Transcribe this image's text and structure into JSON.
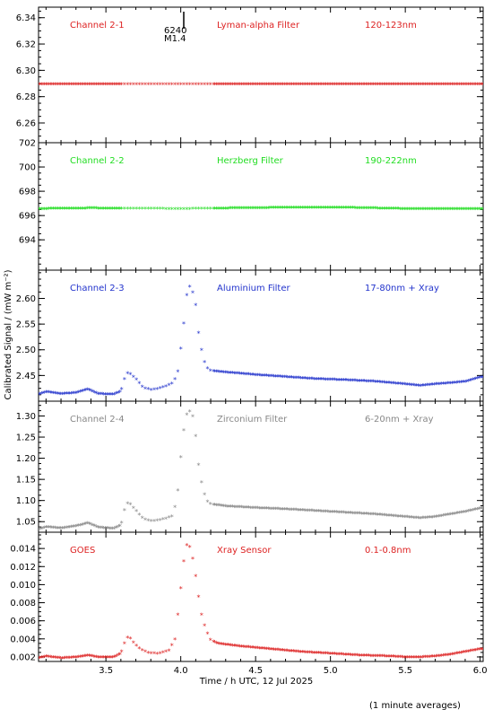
{
  "chart_data": {
    "type": "scatter",
    "x_axis": {
      "label": "Time / h UTC, 12 Jul 2025",
      "range": [
        3.05,
        6.02
      ],
      "ticks": [
        3.5,
        4.0,
        4.5,
        5.0,
        5.5,
        6.0
      ],
      "tick_labels": [
        "3.5",
        "4.0",
        "4.5",
        "5.0",
        "5.5",
        "6.0"
      ]
    },
    "y_axis_label": "Calibrated Signal / (mW m⁻²)",
    "footnote": "(1 minute averages)",
    "marker_annotation": {
      "x": 4.02,
      "line1": "6240",
      "line2": "M1.4"
    },
    "panels": [
      {
        "channel": "Channel 2-1",
        "filter": "Lyman-alpha Filter",
        "band": "120-123nm",
        "color": "#dd2222",
        "ylim": [
          6.245,
          6.348
        ],
        "yticks": [
          6.26,
          6.28,
          6.3,
          6.32,
          6.34
        ],
        "ytick_labels": [
          "6.26",
          "6.28",
          "6.30",
          "6.32",
          "6.34"
        ],
        "style": "line",
        "points": [
          [
            3.05,
            6.289
          ],
          [
            6.02,
            6.289
          ]
        ]
      },
      {
        "channel": "Channel 2-2",
        "filter": "Herzberg Filter",
        "band": "190-222nm",
        "color": "#22dd22",
        "ylim": [
          691.5,
          702.0
        ],
        "yticks": [
          694,
          696,
          698,
          700,
          702
        ],
        "ytick_labels": [
          "694",
          "696",
          "698",
          "700",
          "702"
        ],
        "style": "line",
        "points": [
          [
            3.05,
            696.5
          ],
          [
            3.4,
            696.55
          ],
          [
            4.0,
            696.5
          ],
          [
            4.7,
            696.6
          ],
          [
            5.1,
            696.6
          ],
          [
            5.5,
            696.5
          ],
          [
            6.02,
            696.5
          ]
        ]
      },
      {
        "channel": "Channel 2-3",
        "filter": "Aluminium Filter",
        "band": "17-80nm + Xray",
        "color": "#2233cc",
        "ylim": [
          2.4,
          2.655
        ],
        "yticks": [
          2.45,
          2.5,
          2.55,
          2.6
        ],
        "ytick_labels": [
          "2.45",
          "2.50",
          "2.55",
          "2.60"
        ],
        "style": "mixed",
        "points": [
          [
            3.05,
            2.412
          ],
          [
            3.1,
            2.417
          ],
          [
            3.2,
            2.413
          ],
          [
            3.3,
            2.415
          ],
          [
            3.38,
            2.422
          ],
          [
            3.45,
            2.413
          ],
          [
            3.55,
            2.412
          ],
          [
            3.6,
            2.418
          ],
          [
            3.63,
            2.448
          ],
          [
            3.65,
            2.455
          ],
          [
            3.7,
            2.442
          ],
          [
            3.75,
            2.425
          ],
          [
            3.8,
            2.421
          ],
          [
            3.85,
            2.423
          ],
          [
            3.9,
            2.428
          ],
          [
            3.95,
            2.434
          ],
          [
            3.98,
            2.455
          ],
          [
            4.0,
            2.5
          ],
          [
            4.02,
            2.55
          ],
          [
            4.04,
            2.605
          ],
          [
            4.06,
            2.622
          ],
          [
            4.08,
            2.61
          ],
          [
            4.1,
            2.585
          ],
          [
            4.12,
            2.53
          ],
          [
            4.15,
            2.48
          ],
          [
            4.18,
            2.462
          ],
          [
            4.2,
            2.458
          ],
          [
            4.3,
            2.455
          ],
          [
            4.5,
            2.45
          ],
          [
            4.7,
            2.446
          ],
          [
            4.9,
            2.442
          ],
          [
            5.1,
            2.44
          ],
          [
            5.3,
            2.437
          ],
          [
            5.5,
            2.432
          ],
          [
            5.6,
            2.429
          ],
          [
            5.7,
            2.432
          ],
          [
            5.8,
            2.434
          ],
          [
            5.9,
            2.437
          ],
          [
            6.0,
            2.445
          ]
        ]
      },
      {
        "channel": "Channel 2-4",
        "filter": "Zirconium Filter",
        "band": "6-20nm + Xray",
        "color": "#888888",
        "ylim": [
          1.025,
          1.335
        ],
        "yticks": [
          1.05,
          1.1,
          1.15,
          1.2,
          1.25,
          1.3
        ],
        "ytick_labels": [
          "1.05",
          "1.10",
          "1.15",
          "1.20",
          "1.25",
          "1.30"
        ],
        "style": "mixed",
        "points": [
          [
            3.05,
            1.03
          ],
          [
            3.1,
            1.036
          ],
          [
            3.2,
            1.033
          ],
          [
            3.3,
            1.038
          ],
          [
            3.38,
            1.045
          ],
          [
            3.45,
            1.035
          ],
          [
            3.55,
            1.032
          ],
          [
            3.6,
            1.04
          ],
          [
            3.63,
            1.085
          ],
          [
            3.65,
            1.095
          ],
          [
            3.7,
            1.075
          ],
          [
            3.75,
            1.055
          ],
          [
            3.8,
            1.05
          ],
          [
            3.85,
            1.052
          ],
          [
            3.9,
            1.056
          ],
          [
            3.95,
            1.062
          ],
          [
            3.98,
            1.12
          ],
          [
            4.0,
            1.2
          ],
          [
            4.02,
            1.265
          ],
          [
            4.04,
            1.302
          ],
          [
            4.06,
            1.31
          ],
          [
            4.08,
            1.298
          ],
          [
            4.1,
            1.25
          ],
          [
            4.12,
            1.18
          ],
          [
            4.15,
            1.12
          ],
          [
            4.18,
            1.095
          ],
          [
            4.2,
            1.09
          ],
          [
            4.3,
            1.085
          ],
          [
            4.5,
            1.081
          ],
          [
            4.7,
            1.078
          ],
          [
            4.9,
            1.074
          ],
          [
            5.1,
            1.07
          ],
          [
            5.3,
            1.066
          ],
          [
            5.5,
            1.06
          ],
          [
            5.6,
            1.057
          ],
          [
            5.7,
            1.06
          ],
          [
            5.8,
            1.066
          ],
          [
            5.9,
            1.072
          ],
          [
            6.0,
            1.08
          ]
        ]
      },
      {
        "channel": "GOES",
        "filter": "Xray Sensor",
        "band": "0.1-0.8nm",
        "color": "#dd2222",
        "ylim": [
          0.0015,
          0.0158
        ],
        "yticks": [
          0.002,
          0.004,
          0.006,
          0.008,
          0.01,
          0.012,
          0.014
        ],
        "ytick_labels": [
          "0.002",
          "0.004",
          "0.006",
          "0.008",
          "0.010",
          "0.012",
          "0.014"
        ],
        "style": "mixed",
        "points": [
          [
            3.05,
            0.0018
          ],
          [
            3.1,
            0.002
          ],
          [
            3.2,
            0.0018
          ],
          [
            3.3,
            0.0019
          ],
          [
            3.38,
            0.0021
          ],
          [
            3.45,
            0.0019
          ],
          [
            3.55,
            0.0019
          ],
          [
            3.6,
            0.0023
          ],
          [
            3.62,
            0.0033
          ],
          [
            3.65,
            0.0043
          ],
          [
            3.68,
            0.0036
          ],
          [
            3.72,
            0.0029
          ],
          [
            3.78,
            0.0024
          ],
          [
            3.85,
            0.0023
          ],
          [
            3.92,
            0.0026
          ],
          [
            3.96,
            0.0038
          ],
          [
            3.98,
            0.0065
          ],
          [
            4.0,
            0.0095
          ],
          [
            4.02,
            0.0125
          ],
          [
            4.04,
            0.0143
          ],
          [
            4.06,
            0.0141
          ],
          [
            4.08,
            0.0128
          ],
          [
            4.1,
            0.0108
          ],
          [
            4.12,
            0.0085
          ],
          [
            4.14,
            0.0065
          ],
          [
            4.17,
            0.0048
          ],
          [
            4.2,
            0.0038
          ],
          [
            4.25,
            0.0034
          ],
          [
            4.4,
            0.0031
          ],
          [
            4.6,
            0.0028
          ],
          [
            4.8,
            0.0025
          ],
          [
            5.0,
            0.0023
          ],
          [
            5.2,
            0.0021
          ],
          [
            5.4,
            0.002
          ],
          [
            5.5,
            0.0019
          ],
          [
            5.6,
            0.0019
          ],
          [
            5.7,
            0.002
          ],
          [
            5.8,
            0.0022
          ],
          [
            5.9,
            0.0025
          ],
          [
            6.0,
            0.0028
          ]
        ]
      }
    ]
  }
}
